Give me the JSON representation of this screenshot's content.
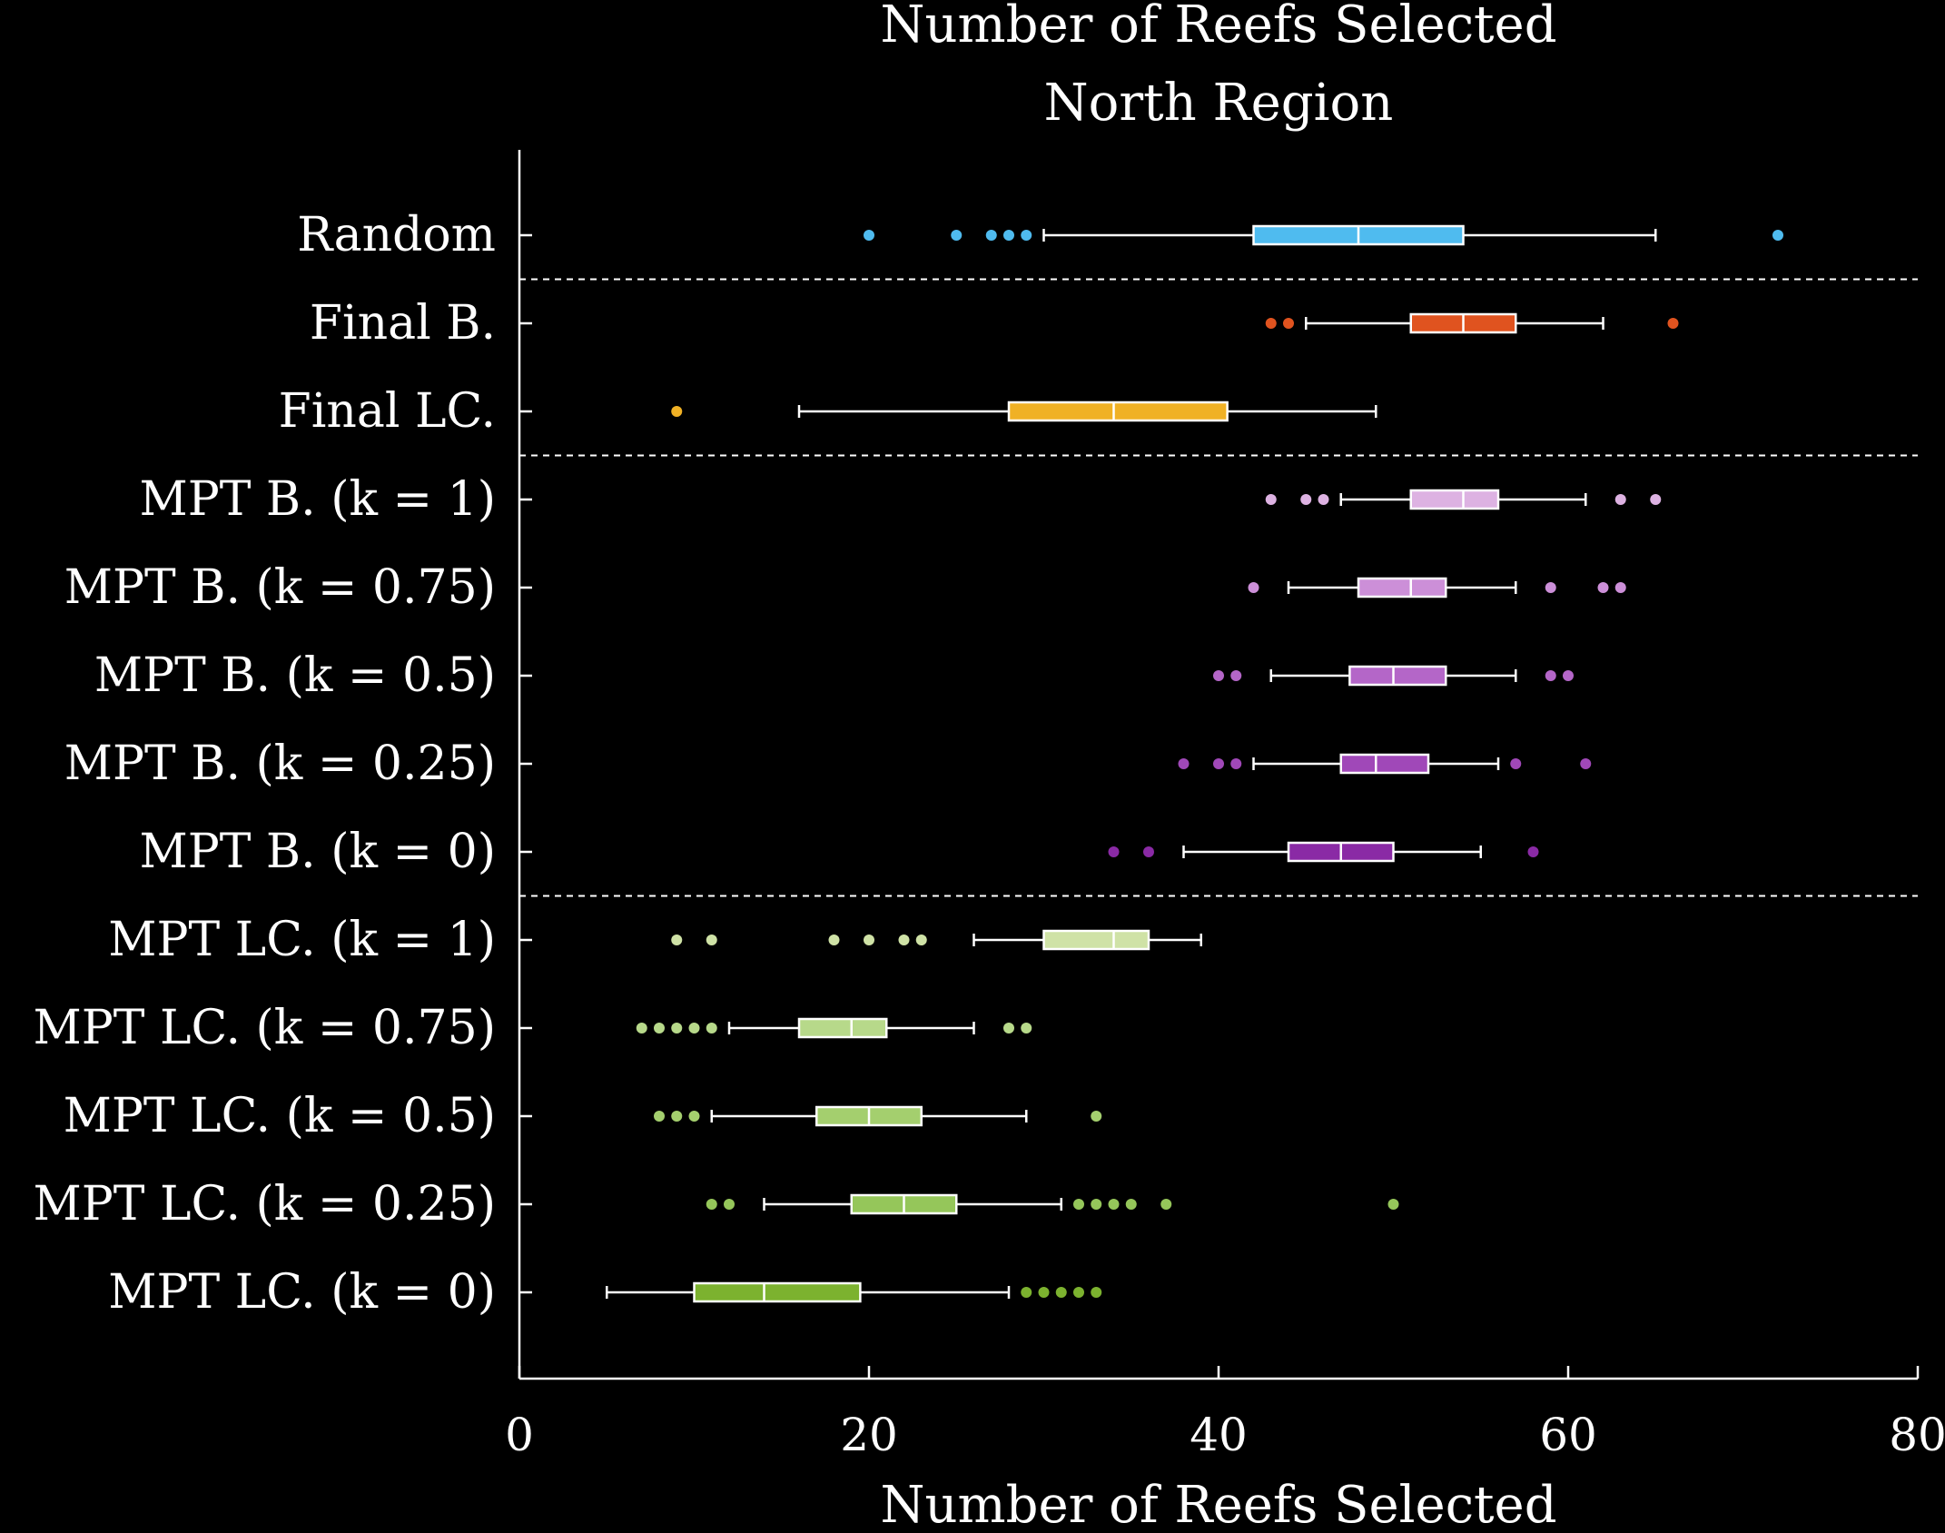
{
  "chart_data": {
    "type": "boxplot",
    "title": "Number of Reefs Selected",
    "subtitle": "North Region",
    "xlabel": "Number of Reefs Selected",
    "ylabel": "",
    "xlim": [
      0,
      80
    ],
    "xticks": [
      0,
      20,
      40,
      60,
      80
    ],
    "xtick_labels": [
      "0",
      "20",
      "40",
      "60",
      "80"
    ],
    "grid": false,
    "background": "#000000",
    "foreground": "#ffffff",
    "group_separators_after": [
      "Random",
      "Final LC.",
      "MPT B. (k = 0)"
    ],
    "series": [
      {
        "label": "Random",
        "color": "#4fbbef",
        "whisker_low": 30,
        "q1": 42,
        "median": 48,
        "q3": 54,
        "whisker_high": 65,
        "outliers": [
          20,
          25,
          27,
          28,
          29,
          72
        ]
      },
      {
        "label": "Final B.",
        "color": "#e0531f",
        "whisker_low": 45,
        "q1": 51,
        "median": 54,
        "q3": 57,
        "whisker_high": 62,
        "outliers": [
          43,
          44,
          66
        ]
      },
      {
        "label": "Final LC.",
        "color": "#f0b125",
        "whisker_low": 16,
        "q1": 28,
        "median": 34,
        "q3": 40.5,
        "whisker_high": 49,
        "outliers": [
          9
        ]
      },
      {
        "label": "MPT B. (k = 1)",
        "color": "#ddb2e2",
        "whisker_low": 47,
        "q1": 51,
        "median": 54,
        "q3": 56,
        "whisker_high": 61,
        "outliers": [
          43,
          45,
          46,
          63,
          65
        ]
      },
      {
        "label": "MPT B. (k = 0.75)",
        "color": "#cc8fd8",
        "whisker_low": 44,
        "q1": 48,
        "median": 51,
        "q3": 53,
        "whisker_high": 57,
        "outliers": [
          42,
          59,
          62,
          63
        ]
      },
      {
        "label": "MPT B. (k = 0.5)",
        "color": "#b466c8",
        "whisker_low": 43,
        "q1": 47.5,
        "median": 50,
        "q3": 53,
        "whisker_high": 57,
        "outliers": [
          40,
          41,
          59,
          60
        ]
      },
      {
        "label": "MPT B. (k = 0.25)",
        "color": "#a048b8",
        "whisker_low": 42,
        "q1": 47,
        "median": 49,
        "q3": 52,
        "whisker_high": 56,
        "outliers": [
          38,
          40,
          41,
          57,
          61
        ]
      },
      {
        "label": "MPT B. (k = 0)",
        "color": "#8a2aa5",
        "whisker_low": 38,
        "q1": 44,
        "median": 47,
        "q3": 50,
        "whisker_high": 55,
        "outliers": [
          34,
          36,
          58
        ]
      },
      {
        "label": "MPT LC. (k = 1)",
        "color": "#cfe2a6",
        "whisker_low": 26,
        "q1": 30,
        "median": 34,
        "q3": 36,
        "whisker_high": 39,
        "outliers": [
          9,
          11,
          18,
          20,
          22,
          23
        ]
      },
      {
        "label": "MPT LC. (k = 0.75)",
        "color": "#b7d98a",
        "whisker_low": 12,
        "q1": 16,
        "median": 19,
        "q3": 21,
        "whisker_high": 26,
        "outliers": [
          7,
          8,
          9,
          10,
          11,
          28,
          29
        ]
      },
      {
        "label": "MPT LC. (k = 0.5)",
        "color": "#a4cf6e",
        "whisker_low": 11,
        "q1": 17,
        "median": 20,
        "q3": 23,
        "whisker_high": 29,
        "outliers": [
          8,
          9,
          10,
          33
        ]
      },
      {
        "label": "MPT LC. (k = 0.25)",
        "color": "#95c65a",
        "whisker_low": 14,
        "q1": 19,
        "median": 22,
        "q3": 25,
        "whisker_high": 31,
        "outliers": [
          11,
          12,
          32,
          33,
          34,
          35,
          37,
          50
        ]
      },
      {
        "label": "MPT LC. (k = 0)",
        "color": "#7cb22f",
        "whisker_low": 5,
        "q1": 10,
        "median": 14,
        "q3": 19.5,
        "whisker_high": 28,
        "outliers": [
          29,
          30,
          31,
          32,
          33
        ]
      }
    ]
  }
}
